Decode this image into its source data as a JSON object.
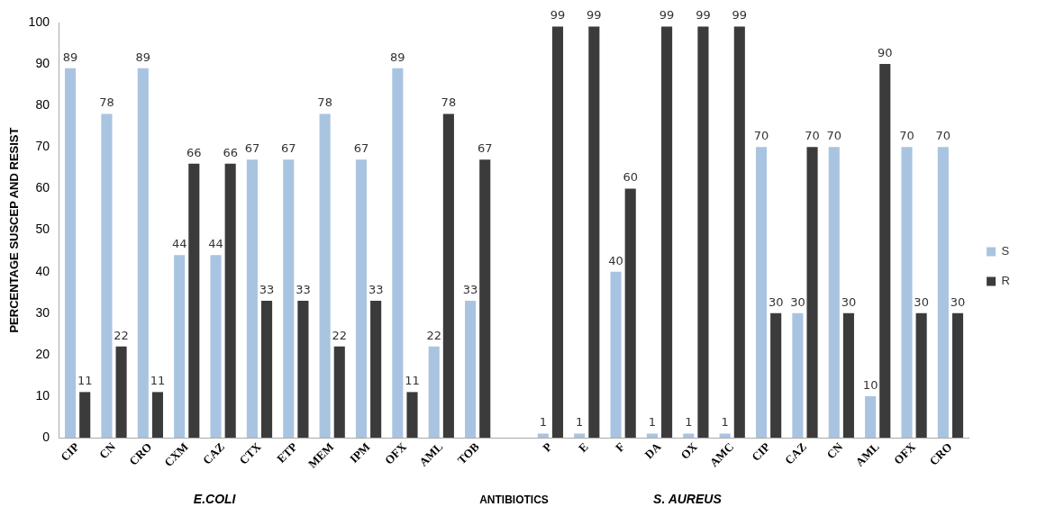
{
  "chart_data": {
    "type": "bar",
    "xlabel": "ANTIBIOTICS",
    "ylabel": "PERCENTAGE SUSCEP AND RESIST",
    "categories": [
      "CIP",
      "CN",
      "CRO",
      "CXM",
      "CAZ",
      "CTX",
      "ETP",
      "MEM",
      "IPM",
      "OFX",
      "AML",
      "TOB",
      null,
      "P",
      "E",
      "F",
      "DA",
      "OX",
      "AMC",
      "CIP",
      "CAZ",
      "CN",
      "AML",
      "OFX",
      "CRO"
    ],
    "series": [
      {
        "name": "S",
        "color": "#a9c4e0",
        "values": [
          89,
          78,
          89,
          44,
          44,
          67,
          67,
          78,
          67,
          89,
          22,
          33,
          null,
          1,
          1,
          40,
          1,
          1,
          1,
          70,
          30,
          70,
          10,
          70,
          70
        ]
      },
      {
        "name": "R",
        "color": "#3b3b3b",
        "values": [
          11,
          22,
          11,
          66,
          66,
          33,
          33,
          22,
          33,
          11,
          78,
          67,
          null,
          99,
          99,
          60,
          99,
          99,
          99,
          30,
          70,
          30,
          90,
          30,
          30
        ]
      }
    ],
    "ylim": [
      0,
      100
    ],
    "yticks": [
      0,
      10,
      20,
      30,
      40,
      50,
      60,
      70,
      80,
      90,
      100
    ],
    "grid": false,
    "legend": "right",
    "data_labels": true,
    "annotations": [
      "E.COLI",
      "S. AUREUS"
    ]
  }
}
